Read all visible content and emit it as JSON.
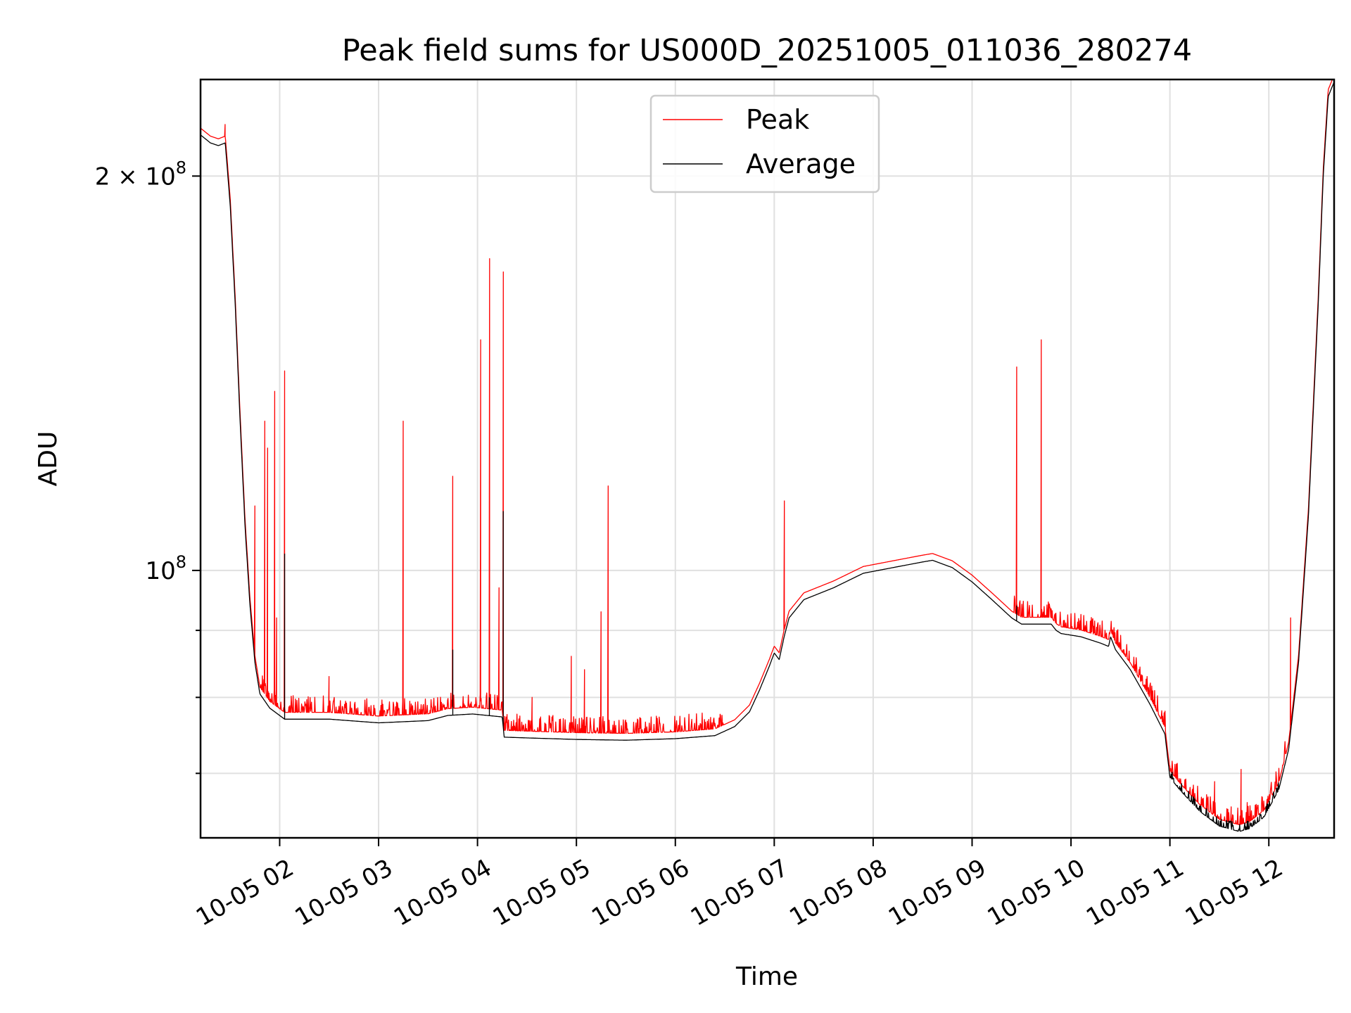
{
  "chart_data": {
    "type": "line",
    "title": "Peak field sums for US000D_20251005_011036_280274",
    "xlabel": "Time",
    "ylabel": "ADU",
    "yscale": "log",
    "ylim": [
      62500000,
      237000000
    ],
    "xlim": [
      1.2,
      12.66
    ],
    "grid": true,
    "legend": {
      "location": "upper center",
      "entries": [
        "Peak",
        "Average"
      ]
    },
    "x_tick_labels": [
      {
        "hour": 2,
        "label": "10-05 02"
      },
      {
        "hour": 3,
        "label": "10-05 03"
      },
      {
        "hour": 4,
        "label": "10-05 04"
      },
      {
        "hour": 5,
        "label": "10-05 05"
      },
      {
        "hour": 6,
        "label": "10-05 06"
      },
      {
        "hour": 7,
        "label": "10-05 07"
      },
      {
        "hour": 8,
        "label": "10-05 08"
      },
      {
        "hour": 9,
        "label": "10-05 09"
      },
      {
        "hour": 10,
        "label": "10-05 10"
      },
      {
        "hour": 11,
        "label": "10-05 11"
      },
      {
        "hour": 12,
        "label": "10-05 12"
      }
    ],
    "y_major_ticks": [
      {
        "value": 100000000,
        "base": "10",
        "exp": "8"
      },
      {
        "value": 200000000,
        "base": "2 × 10",
        "exp": "8"
      }
    ],
    "y_minor_ticks": [
      70000000,
      80000000,
      90000000
    ],
    "series": [
      {
        "name": "Average",
        "color": "#000000",
        "points": [
          [
            1.2,
            215000000
          ],
          [
            1.3,
            212000000
          ],
          [
            1.38,
            211000000
          ],
          [
            1.45,
            212000000
          ],
          [
            1.5,
            190000000
          ],
          [
            1.55,
            160000000
          ],
          [
            1.6,
            130000000
          ],
          [
            1.65,
            108000000
          ],
          [
            1.7,
            94000000
          ],
          [
            1.75,
            85000000
          ],
          [
            1.8,
            80500000
          ],
          [
            1.9,
            78500000
          ],
          [
            2.0,
            77500000
          ],
          [
            2.05,
            77000000
          ],
          [
            2.5,
            77000000
          ],
          [
            3.0,
            76500000
          ],
          [
            3.5,
            76800000
          ],
          [
            3.7,
            77500000
          ],
          [
            3.95,
            77700000
          ],
          [
            4.25,
            77300000
          ],
          [
            4.27,
            74600000
          ],
          [
            4.5,
            74500000
          ],
          [
            5.0,
            74300000
          ],
          [
            5.5,
            74200000
          ],
          [
            6.0,
            74400000
          ],
          [
            6.4,
            74800000
          ],
          [
            6.6,
            76000000
          ],
          [
            6.75,
            78000000
          ],
          [
            6.85,
            81000000
          ],
          [
            6.95,
            84500000
          ],
          [
            7.0,
            86500000
          ],
          [
            7.05,
            85500000
          ],
          [
            7.1,
            89000000
          ],
          [
            7.15,
            92000000
          ],
          [
            7.3,
            95000000
          ],
          [
            7.6,
            97000000
          ],
          [
            7.9,
            99500000
          ],
          [
            8.2,
            100500000
          ],
          [
            8.5,
            101500000
          ],
          [
            8.6,
            101800000
          ],
          [
            8.8,
            100500000
          ],
          [
            9.0,
            98000000
          ],
          [
            9.2,
            95000000
          ],
          [
            9.4,
            92000000
          ],
          [
            9.5,
            91000000
          ],
          [
            9.8,
            91000000
          ],
          [
            9.85,
            90000000
          ],
          [
            9.9,
            89500000
          ],
          [
            10.1,
            89000000
          ],
          [
            10.3,
            88000000
          ],
          [
            10.38,
            87500000
          ],
          [
            10.4,
            89000000
          ],
          [
            10.45,
            87000000
          ],
          [
            10.6,
            84000000
          ],
          [
            10.8,
            79000000
          ],
          [
            10.95,
            75000000
          ],
          [
            11.0,
            69500000
          ],
          [
            11.1,
            68000000
          ],
          [
            11.3,
            65500000
          ],
          [
            11.5,
            63800000
          ],
          [
            11.7,
            63200000
          ],
          [
            11.8,
            63500000
          ],
          [
            11.95,
            64800000
          ],
          [
            12.1,
            68000000
          ],
          [
            12.2,
            73000000
          ],
          [
            12.3,
            85000000
          ],
          [
            12.4,
            110000000
          ],
          [
            12.5,
            160000000
          ],
          [
            12.55,
            200000000
          ],
          [
            12.6,
            230000000
          ],
          [
            12.66,
            236000000
          ]
        ]
      },
      {
        "name": "Peak",
        "color": "#ff0000",
        "offset_ratio": 1.012,
        "spikes": [
          {
            "x": 1.45,
            "peak": 219000000
          },
          {
            "x": 1.75,
            "peak": 112000000
          },
          {
            "x": 1.85,
            "peak": 130000000
          },
          {
            "x": 1.88,
            "peak": 124000000
          },
          {
            "x": 1.95,
            "peak": 137000000
          },
          {
            "x": 1.97,
            "peak": 92000000
          },
          {
            "x": 2.05,
            "peak": 142000000
          },
          {
            "x": 2.5,
            "peak": 83000000
          },
          {
            "x": 3.25,
            "peak": 130000000
          },
          {
            "x": 3.75,
            "peak": 118000000
          },
          {
            "x": 4.03,
            "peak": 150000000
          },
          {
            "x": 4.12,
            "peak": 173000000
          },
          {
            "x": 4.22,
            "peak": 97000000
          },
          {
            "x": 4.26,
            "peak": 169000000
          },
          {
            "x": 4.55,
            "peak": 80000000
          },
          {
            "x": 4.95,
            "peak": 86000000
          },
          {
            "x": 5.08,
            "peak": 84000000
          },
          {
            "x": 5.25,
            "peak": 93000000
          },
          {
            "x": 5.32,
            "peak": 116000000
          },
          {
            "x": 7.1,
            "peak": 113000000
          },
          {
            "x": 9.45,
            "peak": 143000000
          },
          {
            "x": 9.7,
            "peak": 150000000
          },
          {
            "x": 12.22,
            "peak": 92000000
          },
          {
            "x": 11.45,
            "peak": 69000000
          },
          {
            "x": 11.72,
            "peak": 70500000
          },
          {
            "x": 11.62,
            "peak": 66000000
          },
          {
            "x": 11.78,
            "peak": 66500000
          }
        ]
      }
    ]
  }
}
